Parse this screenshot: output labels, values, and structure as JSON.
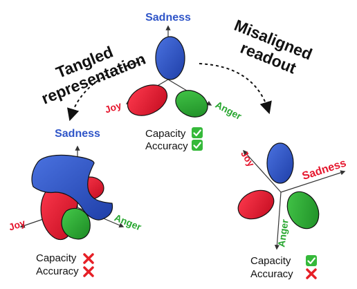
{
  "top": {
    "axis_label_sadness": "Sadness",
    "axis_label_joy": "Joy",
    "axis_label_anger": "Anger",
    "metrics": [
      {
        "label": "Capacity",
        "status": "check"
      },
      {
        "label": "Accuracy",
        "status": "check"
      }
    ]
  },
  "left": {
    "title_line1": "Tangled",
    "title_line2": "representation",
    "axis_label_sadness": "Sadness",
    "axis_label_joy": "Joy",
    "axis_label_anger": "Anger",
    "metrics": [
      {
        "label": "Capacity",
        "status": "cross"
      },
      {
        "label": "Accuracy",
        "status": "cross"
      }
    ]
  },
  "right": {
    "title_line1": "Misaligned",
    "title_line2": "readout",
    "axis_label_sadness": "Sadness",
    "axis_label_joy": "Joy",
    "axis_label_anger": "Anger",
    "metrics": [
      {
        "label": "Capacity",
        "status": "check"
      },
      {
        "label": "Accuracy",
        "status": "cross"
      }
    ]
  },
  "colors": {
    "sadness": "#2f55c8",
    "joy": "#e5162d",
    "anger": "#27a62f",
    "check_bg": "#35b93a",
    "cross": "#e61f26"
  },
  "icons": {
    "check": "check-icon",
    "cross": "cross-icon"
  }
}
